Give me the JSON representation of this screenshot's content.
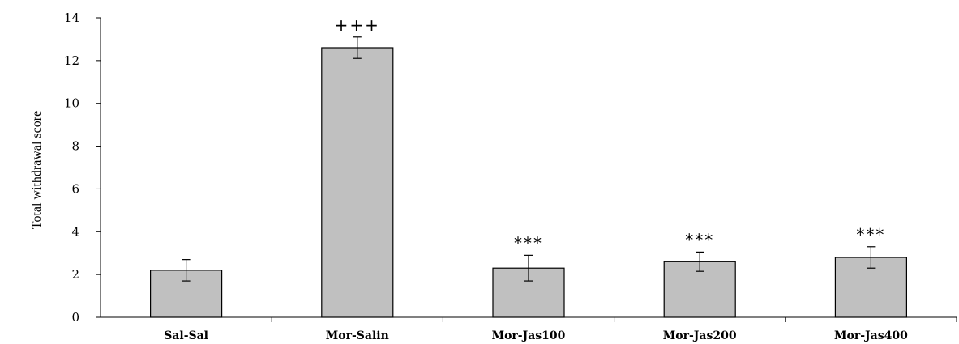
{
  "chart_data": {
    "type": "bar",
    "title": "",
    "xlabel": "",
    "ylabel": "Total withdrawal score",
    "ylim": [
      0,
      14
    ],
    "yticks": [
      "0",
      "2",
      "4",
      "6",
      "8",
      "10",
      "12",
      "14"
    ],
    "grid": false,
    "legend": "none",
    "bar_color": "#c0c0c0",
    "bar_edge_color": "#000000",
    "categories": [
      "Sal-Sal",
      "Mor-Salin",
      "Mor-Jas100",
      "Mor-Jas200",
      "Mor-Jas400"
    ],
    "values": [
      2.2,
      12.6,
      2.3,
      2.6,
      2.8
    ],
    "errors": [
      0.5,
      0.5,
      0.6,
      0.45,
      0.5
    ],
    "annotations": [
      "",
      "+++",
      "***",
      "***",
      "***"
    ]
  }
}
